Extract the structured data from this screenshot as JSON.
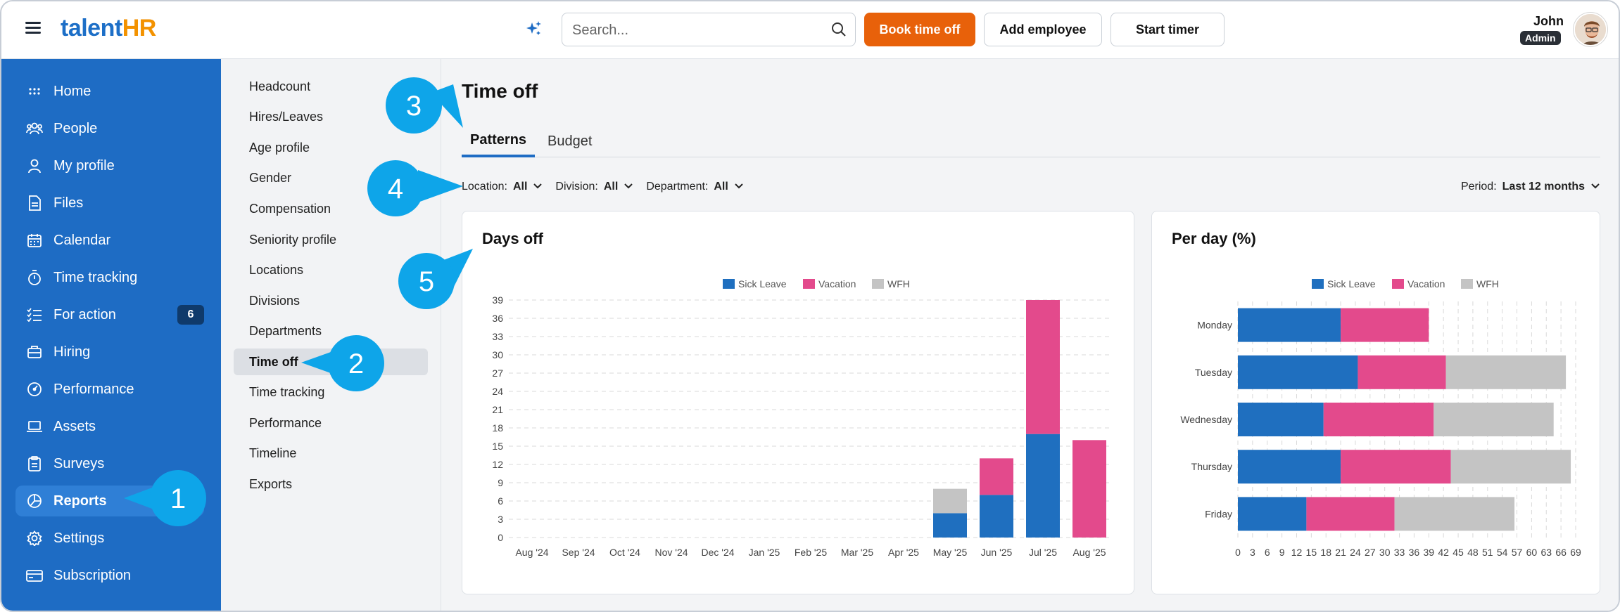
{
  "app": {
    "logo_part1": "talent",
    "logo_part2": "HR"
  },
  "topbar": {
    "search_placeholder": "Search...",
    "book_time_off": "Book time off",
    "add_employee": "Add employee",
    "start_timer": "Start timer",
    "user_name": "John",
    "user_role": "Admin"
  },
  "sidebar": {
    "items": [
      {
        "label": "Home",
        "icon": "home-icon"
      },
      {
        "label": "People",
        "icon": "people-icon"
      },
      {
        "label": "My profile",
        "icon": "profile-icon"
      },
      {
        "label": "Files",
        "icon": "files-icon"
      },
      {
        "label": "Calendar",
        "icon": "calendar-icon"
      },
      {
        "label": "Time tracking",
        "icon": "stopwatch-icon"
      },
      {
        "label": "For action",
        "icon": "checklist-icon",
        "badge": "6"
      },
      {
        "label": "Hiring",
        "icon": "briefcase-icon"
      },
      {
        "label": "Performance",
        "icon": "gauge-icon"
      },
      {
        "label": "Assets",
        "icon": "laptop-icon"
      },
      {
        "label": "Surveys",
        "icon": "clipboard-icon"
      },
      {
        "label": "Reports",
        "icon": "pie-chart-icon",
        "active": true
      },
      {
        "label": "Settings",
        "icon": "gear-icon"
      },
      {
        "label": "Subscription",
        "icon": "credit-card-icon"
      }
    ]
  },
  "submenu": {
    "items": [
      "Headcount",
      "Hires/Leaves",
      "Age profile",
      "Gender",
      "Compensation",
      "Seniority profile",
      "Locations",
      "Divisions",
      "Departments",
      "Time off",
      "Time tracking",
      "Performance",
      "Timeline",
      "Exports"
    ],
    "active": "Time off"
  },
  "page": {
    "title": "Time off",
    "tabs": [
      "Patterns",
      "Budget"
    ],
    "active_tab": "Patterns"
  },
  "filters": {
    "location_label": "Location:",
    "location_value": "All",
    "division_label": "Division:",
    "division_value": "All",
    "department_label": "Department:",
    "department_value": "All",
    "period_label": "Period:",
    "period_value": "Last 12 months"
  },
  "callouts": [
    "1",
    "2",
    "3",
    "4",
    "5"
  ],
  "colors": {
    "sick": "#1f6fbf",
    "vacation": "#e34a8c",
    "wfh": "#c4c4c4",
    "sidebar": "#1e6cc4",
    "primary_button": "#e8610a",
    "callout": "#0ea5e9"
  },
  "chart_data": [
    {
      "type": "bar",
      "stacked": true,
      "orientation": "vertical",
      "title": "Days off",
      "categories": [
        "Aug '24",
        "Sep '24",
        "Oct '24",
        "Nov '24",
        "Dec '24",
        "Jan '25",
        "Feb '25",
        "Mar '25",
        "Apr '25",
        "May '25",
        "Jun '25",
        "Jul '25",
        "Aug '25"
      ],
      "series": [
        {
          "name": "Sick Leave",
          "values": [
            0,
            0,
            0,
            0,
            0,
            0,
            0,
            0,
            0,
            4,
            7,
            17,
            0
          ]
        },
        {
          "name": "Vacation",
          "values": [
            0,
            0,
            0,
            0,
            0,
            0,
            0,
            0,
            0,
            0,
            6,
            22,
            16
          ]
        },
        {
          "name": "WFH",
          "values": [
            0,
            0,
            0,
            0,
            0,
            0,
            0,
            0,
            0,
            4,
            0,
            0,
            0
          ]
        }
      ],
      "yticks": [
        "0",
        "3",
        "6",
        "9",
        "12",
        "15",
        "18",
        "21",
        "24",
        "27",
        "30",
        "33",
        "36",
        "39"
      ],
      "ylim": [
        0,
        39
      ],
      "legend": "top-center",
      "grid": true
    },
    {
      "type": "bar",
      "stacked": true,
      "orientation": "horizontal",
      "title": "Per day (%)",
      "categories": [
        "Monday",
        "Tuesday",
        "Wednesday",
        "Thursday",
        "Friday"
      ],
      "series": [
        {
          "name": "Sick Leave",
          "values": [
            21,
            24.5,
            17.5,
            21,
            14
          ]
        },
        {
          "name": "Vacation",
          "values": [
            18,
            18,
            22.5,
            22.5,
            18
          ]
        },
        {
          "name": "WFH",
          "values": [
            0,
            24.5,
            24.5,
            24.5,
            24.5
          ]
        }
      ],
      "xticks": [
        "0",
        "3",
        "6",
        "9",
        "12",
        "15",
        "18",
        "21",
        "24",
        "27",
        "30",
        "33",
        "36",
        "39",
        "42",
        "45",
        "48",
        "51",
        "54",
        "57",
        "60",
        "63",
        "66",
        "69"
      ],
      "xlim": [
        0,
        69
      ],
      "legend": "top-center",
      "grid": true
    }
  ]
}
